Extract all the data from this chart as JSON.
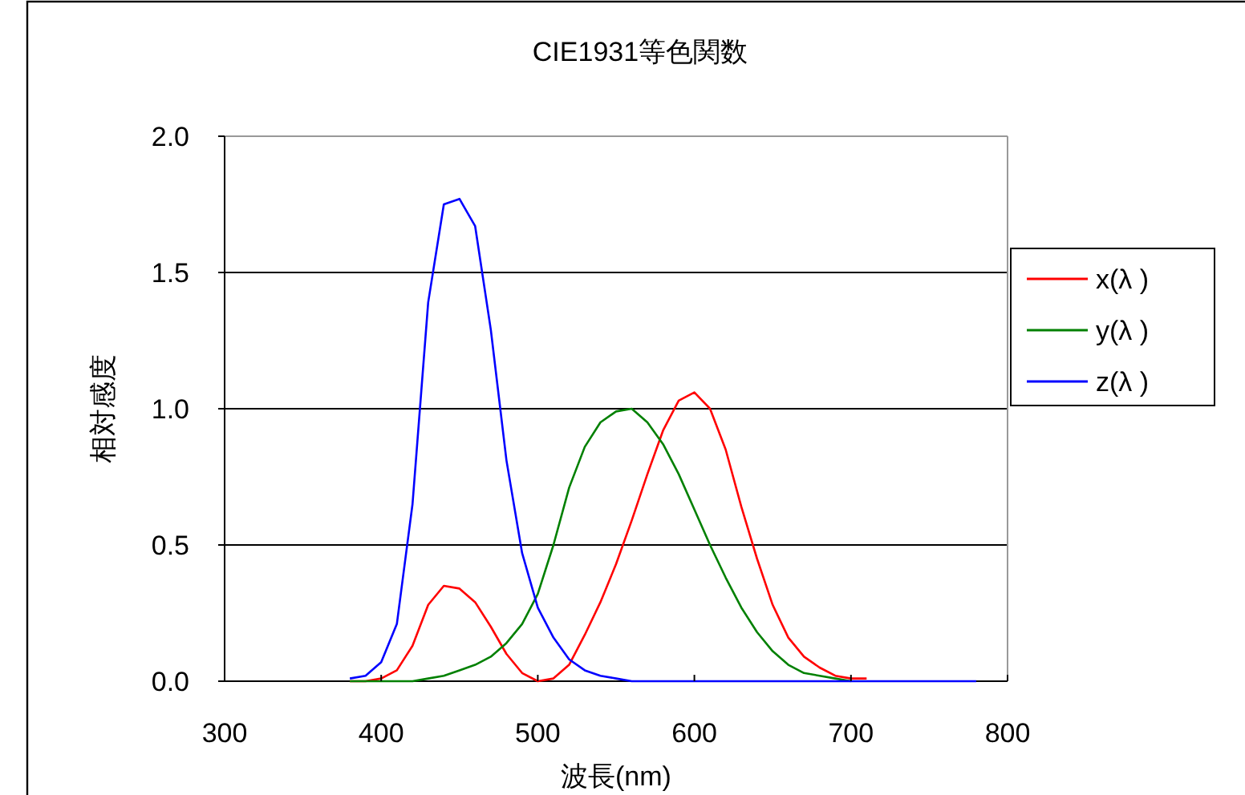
{
  "chart_data": {
    "type": "line",
    "title": "CIE1931等色関数",
    "xlabel": "波長(nm)",
    "ylabel": "相対感度",
    "x": [
      380,
      390,
      400,
      410,
      420,
      430,
      440,
      450,
      460,
      470,
      480,
      490,
      500,
      510,
      520,
      530,
      540,
      550,
      560,
      570,
      580,
      590,
      600,
      610,
      620,
      630,
      640,
      650,
      660,
      670,
      680,
      690,
      700,
      710,
      720,
      730,
      740,
      750,
      760,
      770,
      780
    ],
    "series": [
      {
        "name": "x(λ )",
        "color": "#ff0000",
        "values": [
          0.0,
          0.0,
          0.01,
          0.04,
          0.13,
          0.28,
          0.35,
          0.34,
          0.29,
          0.2,
          0.1,
          0.03,
          0.0,
          0.01,
          0.06,
          0.17,
          0.29,
          0.43,
          0.59,
          0.76,
          0.92,
          1.03,
          1.06,
          1.0,
          0.85,
          0.64,
          0.45,
          0.28,
          0.16,
          0.09,
          0.05,
          0.02,
          0.01,
          0.01,
          null,
          null,
          null,
          null,
          null,
          null,
          null
        ]
      },
      {
        "name": "y(λ )",
        "color": "#008000",
        "values": [
          0.0,
          0.0,
          0.0,
          0.0,
          0.0,
          0.01,
          0.02,
          0.04,
          0.06,
          0.09,
          0.14,
          0.21,
          0.32,
          0.5,
          0.71,
          0.86,
          0.95,
          0.99,
          1.0,
          0.95,
          0.87,
          0.76,
          0.63,
          0.5,
          0.38,
          0.27,
          0.18,
          0.11,
          0.06,
          0.03,
          0.02,
          0.01,
          0.0,
          null,
          null,
          null,
          null,
          null,
          null,
          null,
          null
        ]
      },
      {
        "name": "z(λ )",
        "color": "#0000ff",
        "values": [
          0.01,
          0.02,
          0.07,
          0.21,
          0.65,
          1.39,
          1.75,
          1.77,
          1.67,
          1.29,
          0.81,
          0.47,
          0.27,
          0.16,
          0.08,
          0.04,
          0.02,
          0.01,
          0.0,
          0.0,
          0.0,
          0.0,
          0.0,
          0.0,
          0.0,
          0.0,
          0.0,
          0.0,
          0.0,
          0.0,
          0.0,
          0.0,
          0.0,
          0.0,
          0.0,
          0.0,
          0.0,
          0.0,
          0.0,
          0.0,
          0.0
        ]
      }
    ],
    "xlim": [
      300,
      800
    ],
    "xticks": [
      300,
      400,
      500,
      600,
      700,
      800
    ],
    "ylim": [
      0,
      2
    ],
    "yticks": [
      {
        "value": 0,
        "label": "0.0"
      },
      {
        "value": 0.5,
        "label": "0.5"
      },
      {
        "value": 1,
        "label": "1.0"
      },
      {
        "value": 1.5,
        "label": "1.5"
      },
      {
        "value": 2,
        "label": "2.0"
      }
    ],
    "grid": "y",
    "legend": "right",
    "marker": "none",
    "line_style": "solid"
  }
}
